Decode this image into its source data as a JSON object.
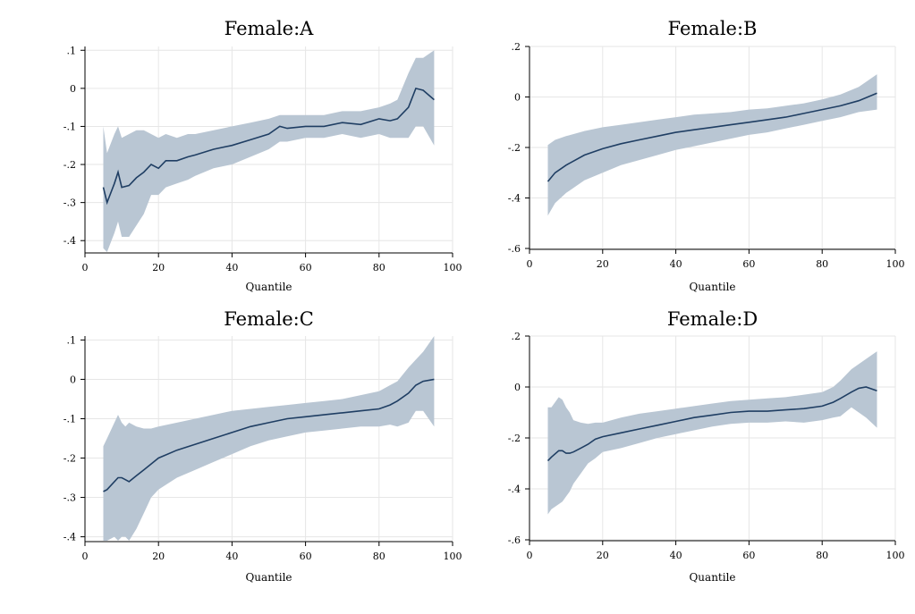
{
  "colors": {
    "band": "#b9c6d3",
    "line": "#1f3e63",
    "grid": "#e6e6e6"
  },
  "chart_data": [
    {
      "type": "line",
      "title": "Female:A",
      "xlabel": "Quantile",
      "xlim": [
        0,
        100
      ],
      "ylim": [
        -0.43,
        0.11
      ],
      "xticks": [
        0,
        20,
        40,
        60,
        80,
        100
      ],
      "xtick_labels": [
        "0",
        "20",
        "40",
        "60",
        "80",
        "100"
      ],
      "yticks": [
        0.1,
        0,
        -0.1,
        -0.2,
        -0.3,
        -0.4
      ],
      "ytick_labels": [
        ".1",
        "0",
        "-.1",
        "-.2",
        "-.3",
        "-.4"
      ],
      "grid": true,
      "x": [
        5,
        6,
        8,
        9,
        10,
        12,
        14,
        16,
        18,
        20,
        22,
        25,
        28,
        30,
        35,
        40,
        45,
        50,
        53,
        55,
        60,
        65,
        70,
        75,
        80,
        83,
        85,
        88,
        90,
        92,
        95
      ],
      "y": [
        -0.26,
        -0.3,
        -0.25,
        -0.22,
        -0.26,
        -0.255,
        -0.235,
        -0.22,
        -0.2,
        -0.21,
        -0.19,
        -0.19,
        -0.18,
        -0.175,
        -0.16,
        -0.15,
        -0.135,
        -0.12,
        -0.1,
        -0.105,
        -0.1,
        -0.1,
        -0.09,
        -0.095,
        -0.08,
        -0.085,
        -0.08,
        -0.05,
        0.0,
        -0.005,
        -0.03
      ],
      "upper": [
        -0.1,
        -0.17,
        -0.12,
        -0.1,
        -0.13,
        -0.12,
        -0.11,
        -0.11,
        -0.12,
        -0.13,
        -0.12,
        -0.13,
        -0.12,
        -0.12,
        -0.11,
        -0.1,
        -0.09,
        -0.08,
        -0.07,
        -0.07,
        -0.07,
        -0.07,
        -0.06,
        -0.06,
        -0.05,
        -0.04,
        -0.03,
        0.04,
        0.08,
        0.08,
        0.1
      ],
      "lower": [
        -0.42,
        -0.43,
        -0.38,
        -0.35,
        -0.39,
        -0.39,
        -0.36,
        -0.33,
        -0.28,
        -0.28,
        -0.26,
        -0.25,
        -0.24,
        -0.23,
        -0.21,
        -0.2,
        -0.18,
        -0.16,
        -0.14,
        -0.14,
        -0.13,
        -0.13,
        -0.12,
        -0.13,
        -0.12,
        -0.13,
        -0.13,
        -0.13,
        -0.1,
        -0.1,
        -0.15
      ]
    },
    {
      "type": "line",
      "title": "Female:B",
      "xlabel": "Quantile",
      "xlim": [
        0,
        100
      ],
      "ylim": [
        -0.6,
        0.2
      ],
      "xticks": [
        0,
        20,
        40,
        60,
        80,
        100
      ],
      "xtick_labels": [
        "0",
        "20",
        "40",
        "60",
        "80",
        "100"
      ],
      "yticks": [
        0.2,
        0,
        -0.2,
        -0.4,
        -0.6
      ],
      "ytick_labels": [
        ".2",
        "0",
        "-.2",
        "-.4",
        "-.6"
      ],
      "grid": true,
      "x": [
        5,
        7,
        10,
        15,
        20,
        25,
        30,
        35,
        40,
        45,
        50,
        55,
        60,
        65,
        70,
        75,
        80,
        85,
        90,
        95
      ],
      "y": [
        -0.335,
        -0.3,
        -0.27,
        -0.23,
        -0.205,
        -0.185,
        -0.17,
        -0.155,
        -0.14,
        -0.13,
        -0.12,
        -0.11,
        -0.1,
        -0.09,
        -0.08,
        -0.065,
        -0.05,
        -0.035,
        -0.015,
        0.015
      ],
      "upper": [
        -0.19,
        -0.17,
        -0.155,
        -0.135,
        -0.12,
        -0.11,
        -0.1,
        -0.09,
        -0.08,
        -0.07,
        -0.065,
        -0.06,
        -0.05,
        -0.045,
        -0.035,
        -0.025,
        -0.01,
        0.01,
        0.04,
        0.09
      ],
      "lower": [
        -0.47,
        -0.42,
        -0.38,
        -0.33,
        -0.3,
        -0.27,
        -0.25,
        -0.23,
        -0.21,
        -0.195,
        -0.18,
        -0.165,
        -0.15,
        -0.14,
        -0.125,
        -0.11,
        -0.095,
        -0.08,
        -0.06,
        -0.05
      ]
    },
    {
      "type": "line",
      "title": "Female:C",
      "xlabel": "Quantile",
      "xlim": [
        0,
        100
      ],
      "ylim": [
        -0.41,
        0.11
      ],
      "xticks": [
        0,
        20,
        40,
        60,
        80,
        100
      ],
      "xtick_labels": [
        "0",
        "20",
        "40",
        "60",
        "80",
        "100"
      ],
      "yticks": [
        0.1,
        0,
        -0.1,
        -0.2,
        -0.3,
        -0.4
      ],
      "ytick_labels": [
        ".1",
        "0",
        "-.1",
        "-.2",
        "-.3",
        "-.4"
      ],
      "grid": true,
      "x": [
        5,
        6,
        8,
        9,
        10,
        11,
        12,
        14,
        16,
        18,
        20,
        25,
        30,
        35,
        40,
        45,
        50,
        55,
        60,
        65,
        70,
        75,
        80,
        83,
        85,
        88,
        90,
        92,
        95
      ],
      "y": [
        -0.285,
        -0.28,
        -0.26,
        -0.25,
        -0.25,
        -0.255,
        -0.26,
        -0.245,
        -0.23,
        -0.215,
        -0.2,
        -0.18,
        -0.165,
        -0.15,
        -0.135,
        -0.12,
        -0.11,
        -0.1,
        -0.095,
        -0.09,
        -0.085,
        -0.08,
        -0.075,
        -0.065,
        -0.055,
        -0.035,
        -0.015,
        -0.005,
        0.0
      ],
      "upper": [
        -0.17,
        -0.15,
        -0.11,
        -0.09,
        -0.11,
        -0.12,
        -0.11,
        -0.12,
        -0.125,
        -0.125,
        -0.12,
        -0.11,
        -0.1,
        -0.09,
        -0.08,
        -0.075,
        -0.07,
        -0.065,
        -0.06,
        -0.055,
        -0.05,
        -0.04,
        -0.03,
        -0.015,
        -0.005,
        0.03,
        0.05,
        0.07,
        0.11
      ],
      "lower": [
        -0.41,
        -0.41,
        -0.4,
        -0.41,
        -0.4,
        -0.4,
        -0.41,
        -0.38,
        -0.34,
        -0.3,
        -0.28,
        -0.25,
        -0.23,
        -0.21,
        -0.19,
        -0.17,
        -0.155,
        -0.145,
        -0.135,
        -0.13,
        -0.125,
        -0.12,
        -0.12,
        -0.115,
        -0.12,
        -0.11,
        -0.08,
        -0.08,
        -0.12
      ]
    },
    {
      "type": "line",
      "title": "Female:D",
      "xlabel": "Quantile",
      "xlim": [
        0,
        100
      ],
      "ylim": [
        -0.6,
        0.2
      ],
      "xticks": [
        0,
        20,
        40,
        60,
        80,
        100
      ],
      "xtick_labels": [
        "0",
        "20",
        "40",
        "60",
        "80",
        "100"
      ],
      "yticks": [
        0.2,
        0,
        -0.2,
        -0.4,
        -0.6
      ],
      "ytick_labels": [
        ".2",
        "0",
        "-.2",
        "-.4",
        "-.6"
      ],
      "grid": true,
      "x": [
        5,
        6,
        8,
        9,
        10,
        11,
        12,
        14,
        16,
        18,
        20,
        25,
        30,
        35,
        40,
        45,
        50,
        55,
        60,
        65,
        70,
        75,
        80,
        83,
        85,
        88,
        90,
        92,
        95
      ],
      "y": [
        -0.29,
        -0.275,
        -0.25,
        -0.25,
        -0.26,
        -0.26,
        -0.255,
        -0.24,
        -0.225,
        -0.205,
        -0.195,
        -0.18,
        -0.165,
        -0.15,
        -0.135,
        -0.12,
        -0.11,
        -0.1,
        -0.095,
        -0.095,
        -0.09,
        -0.085,
        -0.075,
        -0.06,
        -0.045,
        -0.02,
        -0.005,
        0.0,
        -0.015
      ],
      "upper": [
        -0.08,
        -0.08,
        -0.04,
        -0.05,
        -0.08,
        -0.1,
        -0.13,
        -0.14,
        -0.145,
        -0.14,
        -0.14,
        -0.12,
        -0.105,
        -0.095,
        -0.085,
        -0.075,
        -0.065,
        -0.055,
        -0.05,
        -0.045,
        -0.04,
        -0.03,
        -0.02,
        0.0,
        0.025,
        0.07,
        0.09,
        0.11,
        0.14
      ],
      "lower": [
        -0.5,
        -0.48,
        -0.46,
        -0.45,
        -0.43,
        -0.41,
        -0.38,
        -0.34,
        -0.3,
        -0.28,
        -0.255,
        -0.24,
        -0.22,
        -0.2,
        -0.185,
        -0.17,
        -0.155,
        -0.145,
        -0.14,
        -0.14,
        -0.135,
        -0.14,
        -0.13,
        -0.12,
        -0.115,
        -0.08,
        -0.1,
        -0.12,
        -0.16
      ]
    }
  ]
}
